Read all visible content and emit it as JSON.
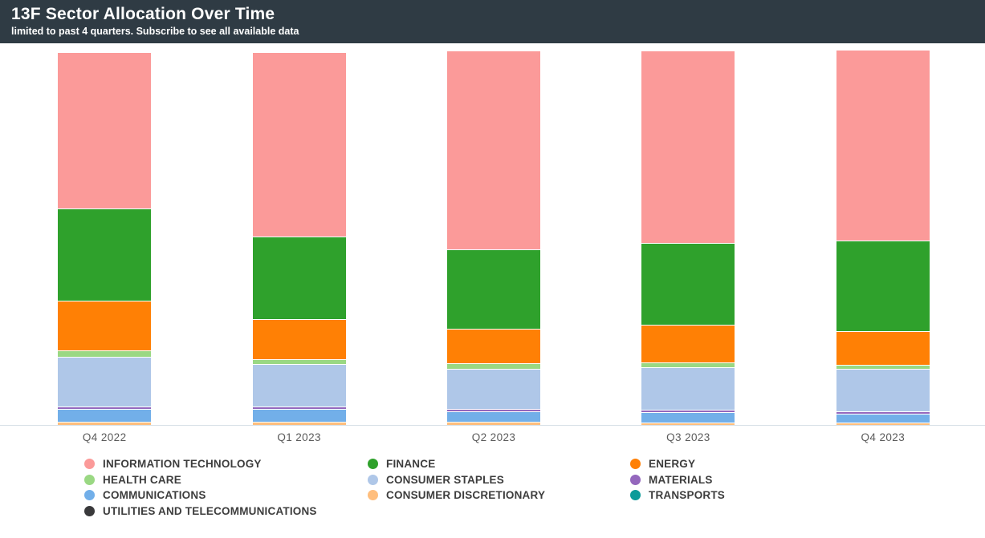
{
  "header": {
    "title": "13F Sector Allocation Over Time",
    "subtitle": "limited to past 4 quarters. Subscribe to see all available data",
    "bg_color": "#2F3B44",
    "text_color": "#FFFFFF"
  },
  "chart_data": {
    "type": "bar",
    "stacked": true,
    "unit": "percent_of_portfolio",
    "title": "13F Sector Allocation Over Time",
    "xlabel": "",
    "ylabel": "",
    "ylim": [
      0,
      100
    ],
    "grid": false,
    "legend_position": "bottom",
    "categories": [
      "Q4 2022",
      "Q1 2023",
      "Q2 2023",
      "Q3 2023",
      "Q4 2023"
    ],
    "stack_order_top_to_bottom": [
      "INFORMATION TECHNOLOGY",
      "FINANCE",
      "ENERGY",
      "HEALTH CARE",
      "CONSUMER STAPLES",
      "MATERIALS",
      "COMMUNICATIONS",
      "CONSUMER DISCRETIONARY",
      "TRANSPORTS",
      "UTILITIES AND TELECOMMUNICATIONS"
    ],
    "series": [
      {
        "name": "INFORMATION TECHNOLOGY",
        "color": "#FB9A99",
        "values": [
          41.9,
          49.4,
          53.1,
          51.5,
          51.1
        ]
      },
      {
        "name": "FINANCE",
        "color": "#2FA12C",
        "values": [
          24.7,
          22.2,
          21.4,
          21.8,
          24.3
        ]
      },
      {
        "name": "ENERGY",
        "color": "#FF8005",
        "values": [
          13.5,
          10.8,
          9.3,
          10.2,
          9.1
        ]
      },
      {
        "name": "HEALTH CARE",
        "color": "#9AD883",
        "values": [
          1.7,
          1.3,
          1.4,
          1.3,
          1.1
        ]
      },
      {
        "name": "CONSUMER STAPLES",
        "color": "#AFC7E8",
        "values": [
          13.3,
          11.3,
          10.8,
          11.5,
          11.4
        ]
      },
      {
        "name": "MATERIALS",
        "color": "#9467BD",
        "values": [
          0.5,
          0.5,
          0.2,
          0.2,
          0.1
        ]
      },
      {
        "name": "COMMUNICATIONS",
        "color": "#72AFE9",
        "values": [
          3.4,
          3.6,
          2.9,
          2.7,
          2.4
        ]
      },
      {
        "name": "CONSUMER DISCRETIONARY",
        "color": "#FFBE7D",
        "values": [
          0.9,
          0.8,
          0.8,
          0.7,
          0.4
        ]
      },
      {
        "name": "TRANSPORTS",
        "color": "#0C9B99",
        "values": [
          0,
          0,
          0,
          0,
          0
        ]
      },
      {
        "name": "UTILITIES AND TELECOMMUNICATIONS",
        "color": "#39393B",
        "values": [
          0,
          0,
          0,
          0,
          0
        ]
      }
    ]
  },
  "legend": {
    "items": [
      {
        "label": "INFORMATION TECHNOLOGY",
        "color": "#FB9A99"
      },
      {
        "label": "FINANCE",
        "color": "#2FA12C"
      },
      {
        "label": "ENERGY",
        "color": "#FF8005"
      },
      {
        "label": "HEALTH CARE",
        "color": "#9AD883"
      },
      {
        "label": "CONSUMER STAPLES",
        "color": "#AFC7E8"
      },
      {
        "label": "MATERIALS",
        "color": "#9467BD"
      },
      {
        "label": "COMMUNICATIONS",
        "color": "#72AFE9"
      },
      {
        "label": "CONSUMER DISCRETIONARY",
        "color": "#FFBE7D"
      },
      {
        "label": "TRANSPORTS",
        "color": "#0C9B99"
      },
      {
        "label": "UTILITIES AND TELECOMMUNICATIONS",
        "color": "#39393B"
      }
    ]
  },
  "axis": {
    "baseline_color": "#D8E1E7",
    "tick_label_color": "#5B5B5B"
  }
}
